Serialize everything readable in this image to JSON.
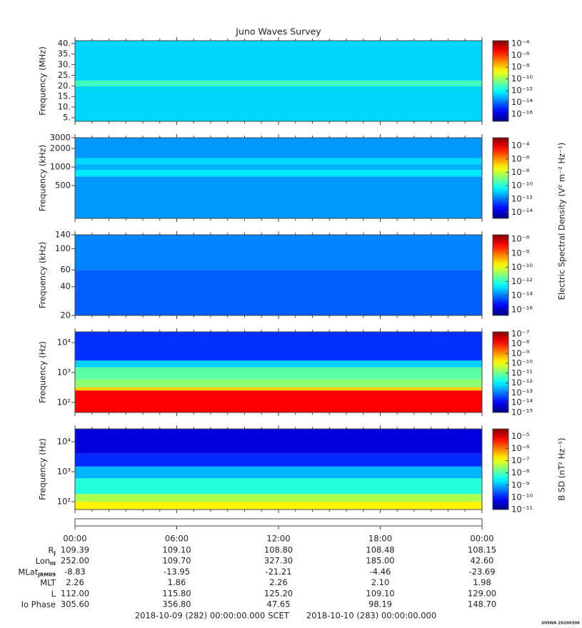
{
  "title": "Juno Waves Survey",
  "chart_data": [
    {
      "type": "spectrogram",
      "ylabel": "Frequency (MHz)",
      "ylog": false,
      "ylim": [
        3.3,
        41.3
      ],
      "yticks": [
        {
          "value": 5,
          "label": "5."
        },
        {
          "value": 10,
          "label": "10."
        },
        {
          "value": 15,
          "label": "15."
        },
        {
          "value": 20,
          "label": "20."
        },
        {
          "value": 25,
          "label": "25."
        },
        {
          "value": 30,
          "label": "30."
        },
        {
          "value": 35,
          "label": "35."
        },
        {
          "value": 40,
          "label": "40."
        }
      ],
      "freq_edges": [
        3.3,
        19.8,
        22.5,
        41.3
      ],
      "levels": [
        -12.6,
        -11.2,
        -12.6
      ],
      "clim": [
        -17.2,
        -3.5
      ],
      "cticks": [
        {
          "value": -4,
          "label": "10⁻⁴"
        },
        {
          "value": -6,
          "label": "10⁻⁶"
        },
        {
          "value": -8,
          "label": "10⁻⁸"
        },
        {
          "value": -10,
          "label": "10⁻¹⁰"
        },
        {
          "value": -12,
          "label": "10⁻¹²"
        },
        {
          "value": -14,
          "label": "10⁻¹⁴"
        },
        {
          "value": -16,
          "label": "10⁻¹⁶"
        }
      ]
    },
    {
      "type": "spectrogram",
      "ylabel": "Frequency (kHz)",
      "ylog": true,
      "ylim": [
        146,
        3000
      ],
      "yticks": [
        500,
        1000,
        2000,
        3000
      ],
      "freq_edges": [
        146,
        700,
        900,
        1100,
        1400,
        3000
      ],
      "levels": [
        -11.6,
        -10.6,
        -11.3,
        -10.8,
        -11.6
      ],
      "clim": [
        -14.9,
        -2.8
      ],
      "cticks": [
        {
          "value": -4,
          "label": "10⁻⁴"
        },
        {
          "value": -6,
          "label": "10⁻⁶"
        },
        {
          "value": -8,
          "label": "10⁻⁸"
        },
        {
          "value": -10,
          "label": "10⁻¹⁰"
        },
        {
          "value": -12,
          "label": "10⁻¹²"
        },
        {
          "value": -14,
          "label": "10⁻¹⁴"
        }
      ],
      "colorbar_label": "Electric Spectral Density (V² m⁻² Hz⁻¹)"
    },
    {
      "type": "spectrogram",
      "ylabel": "Frequency (kHz)",
      "ylog": true,
      "ylim": [
        20,
        140
      ],
      "yticks": [
        20,
        40,
        60,
        100,
        140
      ],
      "freq_edges": [
        20,
        60,
        140
      ],
      "levels": [
        -14.3,
        -13.9
      ],
      "clim": [
        -16.8,
        -5.4
      ],
      "cticks": [
        {
          "value": -6,
          "label": "10⁻⁶"
        },
        {
          "value": -8,
          "label": "10⁻⁸"
        },
        {
          "value": -10,
          "label": "10⁻¹⁰"
        },
        {
          "value": -12,
          "label": "10⁻¹²"
        },
        {
          "value": -14,
          "label": "10⁻¹⁴"
        },
        {
          "value": -16,
          "label": "10⁻¹⁶"
        }
      ]
    },
    {
      "type": "spectrogram",
      "ylabel": "Frequency (Hz)",
      "ylog": true,
      "ylim": [
        46,
        22750
      ],
      "yticks": [
        {
          "value": 100,
          "label": "10²"
        },
        {
          "value": 1000,
          "label": "10³"
        },
        {
          "value": 10000,
          "label": "10⁴"
        }
      ],
      "freq_edges": [
        46,
        250,
        320,
        600,
        1500,
        2500,
        22750
      ],
      "levels": [
        -7.8,
        -9.5,
        -10.8,
        -11.2,
        -12.3,
        -13.6
      ],
      "clim": [
        -15,
        -6.8
      ],
      "cticks": [
        {
          "value": -7,
          "label": "10⁻⁷"
        },
        {
          "value": -8,
          "label": "10⁻⁸"
        },
        {
          "value": -9,
          "label": "10⁻⁹"
        },
        {
          "value": -10,
          "label": "10⁻¹⁰"
        },
        {
          "value": -11,
          "label": "10⁻¹¹"
        },
        {
          "value": -12,
          "label": "10⁻¹²"
        },
        {
          "value": -13,
          "label": "10⁻¹³"
        },
        {
          "value": -14,
          "label": "10⁻¹⁴"
        },
        {
          "value": -15,
          "label": "10⁻¹⁵"
        }
      ]
    },
    {
      "type": "spectrogram",
      "ylabel": "Frequency (Hz)",
      "ylog": true,
      "ylim": [
        54.6,
        26800
      ],
      "yticks": [
        {
          "value": 100,
          "label": "10²"
        },
        {
          "value": 1000,
          "label": "10³"
        },
        {
          "value": 10000,
          "label": "10⁴"
        }
      ],
      "freq_edges": [
        54.6,
        100,
        180,
        600,
        1500,
        4000,
        26800
      ],
      "levels": [
        -6.8,
        -7.4,
        -8.3,
        -9.0,
        -9.9,
        -10.4
      ],
      "clim": [
        -11,
        -4.4
      ],
      "cticks": [
        {
          "value": -5,
          "label": "10⁻⁵"
        },
        {
          "value": -6,
          "label": "10⁻⁶"
        },
        {
          "value": -7,
          "label": "10⁻⁷"
        },
        {
          "value": -8,
          "label": "10⁻⁸"
        },
        {
          "value": -9,
          "label": "10⁻⁹"
        },
        {
          "value": -10,
          "label": "10⁻¹⁰"
        },
        {
          "value": -11,
          "label": "10⁻¹¹"
        }
      ],
      "colorbar_label": "B SD (nT² Hz⁻¹)"
    }
  ],
  "time_axis": {
    "xlim": [
      0,
      24
    ],
    "xticks": [
      {
        "value": 0,
        "label": "00:00"
      },
      {
        "value": 6,
        "label": "06:00"
      },
      {
        "value": 12,
        "label": "12:00"
      },
      {
        "value": 18,
        "label": "18:00"
      },
      {
        "value": 24,
        "label": "00:00"
      }
    ]
  },
  "ephemeris": [
    {
      "label": "R",
      "sub": "J",
      "values": [
        "109.39",
        "109.10",
        "108.80",
        "108.48",
        "108.15"
      ]
    },
    {
      "label": "Lon",
      "sub": "III",
      "values": [
        "252.00",
        "109.70",
        "327.30",
        "185.00",
        "42.60"
      ]
    },
    {
      "label": "MLat",
      "sub": "JRM09",
      "values": [
        "-8.83",
        "-13.95",
        "-21.21",
        "-4.46",
        "-23.69"
      ]
    },
    {
      "label": "MLT",
      "values": [
        "2.26",
        "1.86",
        "2.26",
        "2.10",
        "1.98"
      ]
    },
    {
      "label": "L",
      "values": [
        "112.00",
        "115.80",
        "125.20",
        "109.10",
        "129.00"
      ]
    },
    {
      "label": "Io Phase",
      "values": [
        "305.60",
        "356.80",
        "47.65",
        "98.19",
        "148.70"
      ]
    }
  ],
  "footer": {
    "start": "2018-10-09 (282) 00:00:00.000",
    "frame": "SCET",
    "end": "2018-10-10 (283) 00:00:00.000",
    "credit": "UIOWA 20200306"
  }
}
